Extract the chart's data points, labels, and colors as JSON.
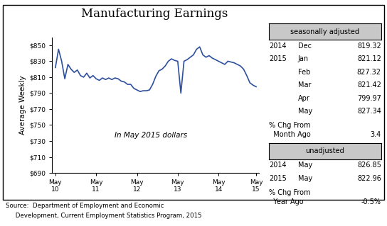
{
  "title": "Manufacturing Earnings",
  "ylabel": "Average Weekly",
  "xlabel_ticks": [
    "May\n10",
    "May\n11",
    "May\n12",
    "May\n13",
    "May\n14",
    "May\n15"
  ],
  "ylim": [
    690,
    860
  ],
  "yticks": [
    690,
    710,
    730,
    750,
    770,
    790,
    810,
    830,
    850
  ],
  "ytick_labels": [
    "$690",
    "$710",
    "$730",
    "$750",
    "$770",
    "$790",
    "$810",
    "$830",
    "$850"
  ],
  "line_color": "#2e4f9e",
  "annotation": "In May 2015 dollars",
  "source_line1": "Source:  Department of Employment and Economic",
  "source_line2": "     Development, Current Employment Statistics Program, 2015",
  "seasonally_adjusted_label": "seasonally adjusted",
  "sa_data": [
    [
      "2014",
      "Dec",
      "819.32"
    ],
    [
      "2015",
      "Jan",
      "821.12"
    ],
    [
      "",
      "Feb",
      "827.32"
    ],
    [
      "",
      "Mar",
      "821.42"
    ],
    [
      "",
      "Apr",
      "799.97"
    ],
    [
      "",
      "May",
      "827.34"
    ]
  ],
  "sa_pct_label1": "% Chg From",
  "sa_pct_label2": "  Month Ago",
  "sa_pct_value": "3.4",
  "unadjusted_label": "unadjusted",
  "ua_data": [
    [
      "2014",
      "May",
      "826.85"
    ],
    [
      "2015",
      "May",
      "822.96"
    ]
  ],
  "ua_pct_label1": "% Chg From",
  "ua_pct_label2": "  Year Ago",
  "ua_pct_value": "-0.5%",
  "y_values": [
    822,
    845,
    830,
    808,
    826,
    820,
    816,
    819,
    812,
    810,
    815,
    809,
    812,
    808,
    806,
    809,
    807,
    809,
    807,
    809,
    808,
    805,
    804,
    801,
    801,
    796,
    794,
    792,
    793,
    793,
    794,
    801,
    811,
    818,
    820,
    824,
    830,
    833,
    831,
    830,
    790,
    830,
    832,
    835,
    838,
    845,
    848,
    838,
    835,
    837,
    834,
    832,
    830,
    828,
    826,
    830,
    829,
    828,
    826,
    824,
    820,
    812,
    803,
    800,
    798
  ],
  "background_color": "#ffffff",
  "box_bg_color": "#c8c8c8"
}
